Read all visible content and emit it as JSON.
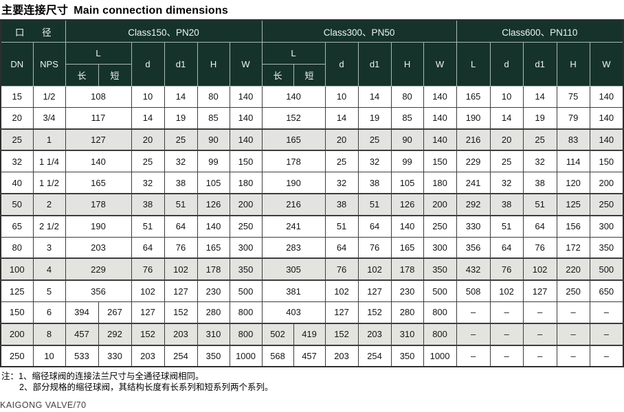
{
  "title": {
    "zh": "主要连接尺寸",
    "en": "Main connection dimensions"
  },
  "colors": {
    "header_bg": "#16332b",
    "header_text": "#eef3ee",
    "header_grid": "#a9bab1",
    "body_grid": "#3c3c3c",
    "shaded_row_bg": "#e3e3df"
  },
  "table": {
    "headers": {
      "caliber": "口 径",
      "dn": "DN",
      "nps": "NPS",
      "section_class150": "Class150、PN20",
      "section_class300": "Class300、PN50",
      "section_class600": "Class600、PN110",
      "l": "L",
      "long": "长",
      "short": "短",
      "d": "d",
      "d1": "d1",
      "h": "H",
      "w": "W"
    },
    "rows": [
      {
        "dn": "15",
        "nps": "1/2",
        "shaded": false,
        "c150_l": [
          "108"
        ],
        "c150": [
          "10",
          "14",
          "80",
          "140"
        ],
        "c300_l": [
          "140"
        ],
        "c300": [
          "10",
          "14",
          "80",
          "140"
        ],
        "c600": [
          "165",
          "10",
          "14",
          "75",
          "140"
        ]
      },
      {
        "dn": "20",
        "nps": "3/4",
        "shaded": false,
        "c150_l": [
          "117"
        ],
        "c150": [
          "14",
          "19",
          "85",
          "140"
        ],
        "c300_l": [
          "152"
        ],
        "c300": [
          "14",
          "19",
          "85",
          "140"
        ],
        "c600": [
          "190",
          "14",
          "19",
          "79",
          "140"
        ]
      },
      {
        "dn": "25",
        "nps": "1",
        "shaded": true,
        "c150_l": [
          "127"
        ],
        "c150": [
          "20",
          "25",
          "90",
          "140"
        ],
        "c300_l": [
          "165"
        ],
        "c300": [
          "20",
          "25",
          "90",
          "140"
        ],
        "c600": [
          "216",
          "20",
          "25",
          "83",
          "140"
        ]
      },
      {
        "dn": "32",
        "nps": "1 1/4",
        "shaded": false,
        "c150_l": [
          "140"
        ],
        "c150": [
          "25",
          "32",
          "99",
          "150"
        ],
        "c300_l": [
          "178"
        ],
        "c300": [
          "25",
          "32",
          "99",
          "150"
        ],
        "c600": [
          "229",
          "25",
          "32",
          "114",
          "150"
        ]
      },
      {
        "dn": "40",
        "nps": "1 1/2",
        "shaded": false,
        "c150_l": [
          "165"
        ],
        "c150": [
          "32",
          "38",
          "105",
          "180"
        ],
        "c300_l": [
          "190"
        ],
        "c300": [
          "32",
          "38",
          "105",
          "180"
        ],
        "c600": [
          "241",
          "32",
          "38",
          "120",
          "200"
        ]
      },
      {
        "dn": "50",
        "nps": "2",
        "shaded": true,
        "c150_l": [
          "178"
        ],
        "c150": [
          "38",
          "51",
          "126",
          "200"
        ],
        "c300_l": [
          "216"
        ],
        "c300": [
          "38",
          "51",
          "126",
          "200"
        ],
        "c600": [
          "292",
          "38",
          "51",
          "125",
          "250"
        ]
      },
      {
        "dn": "65",
        "nps": "2 1/2",
        "shaded": false,
        "c150_l": [
          "190"
        ],
        "c150": [
          "51",
          "64",
          "140",
          "250"
        ],
        "c300_l": [
          "241"
        ],
        "c300": [
          "51",
          "64",
          "140",
          "250"
        ],
        "c600": [
          "330",
          "51",
          "64",
          "156",
          "300"
        ]
      },
      {
        "dn": "80",
        "nps": "3",
        "shaded": false,
        "c150_l": [
          "203"
        ],
        "c150": [
          "64",
          "76",
          "165",
          "300"
        ],
        "c300_l": [
          "283"
        ],
        "c300": [
          "64",
          "76",
          "165",
          "300"
        ],
        "c600": [
          "356",
          "64",
          "76",
          "172",
          "350"
        ]
      },
      {
        "dn": "100",
        "nps": "4",
        "shaded": true,
        "c150_l": [
          "229"
        ],
        "c150": [
          "76",
          "102",
          "178",
          "350"
        ],
        "c300_l": [
          "305"
        ],
        "c300": [
          "76",
          "102",
          "178",
          "350"
        ],
        "c600": [
          "432",
          "76",
          "102",
          "220",
          "500"
        ]
      },
      {
        "dn": "125",
        "nps": "5",
        "shaded": false,
        "c150_l": [
          "356"
        ],
        "c150": [
          "102",
          "127",
          "230",
          "500"
        ],
        "c300_l": [
          "381"
        ],
        "c300": [
          "102",
          "127",
          "230",
          "500"
        ],
        "c600": [
          "508",
          "102",
          "127",
          "250",
          "650"
        ]
      },
      {
        "dn": "150",
        "nps": "6",
        "shaded": false,
        "c150_l": [
          "394",
          "267"
        ],
        "c150": [
          "127",
          "152",
          "280",
          "800"
        ],
        "c300_l": [
          "403"
        ],
        "c300": [
          "127",
          "152",
          "280",
          "800"
        ],
        "c600": [
          "–",
          "–",
          "–",
          "–",
          "–"
        ]
      },
      {
        "dn": "200",
        "nps": "8",
        "shaded": true,
        "c150_l": [
          "457",
          "292"
        ],
        "c150": [
          "152",
          "203",
          "310",
          "800"
        ],
        "c300_l": [
          "502",
          "419"
        ],
        "c300": [
          "152",
          "203",
          "310",
          "800"
        ],
        "c600": [
          "–",
          "–",
          "–",
          "–",
          "–"
        ]
      },
      {
        "dn": "250",
        "nps": "10",
        "shaded": false,
        "c150_l": [
          "533",
          "330"
        ],
        "c150": [
          "203",
          "254",
          "350",
          "1000"
        ],
        "c300_l": [
          "568",
          "457"
        ],
        "c300": [
          "203",
          "254",
          "350",
          "1000"
        ],
        "c600": [
          "–",
          "–",
          "–",
          "–",
          "–"
        ]
      }
    ]
  },
  "notes": {
    "label": "注：",
    "line1": "1、缩径球阀的连接法兰尺寸与全通径球阀相同。",
    "line2": "2、部分规格的缩径球阀，其结构长度有长系列和短系列两个系列。"
  },
  "footer": "KAIGONG VALVE/70"
}
